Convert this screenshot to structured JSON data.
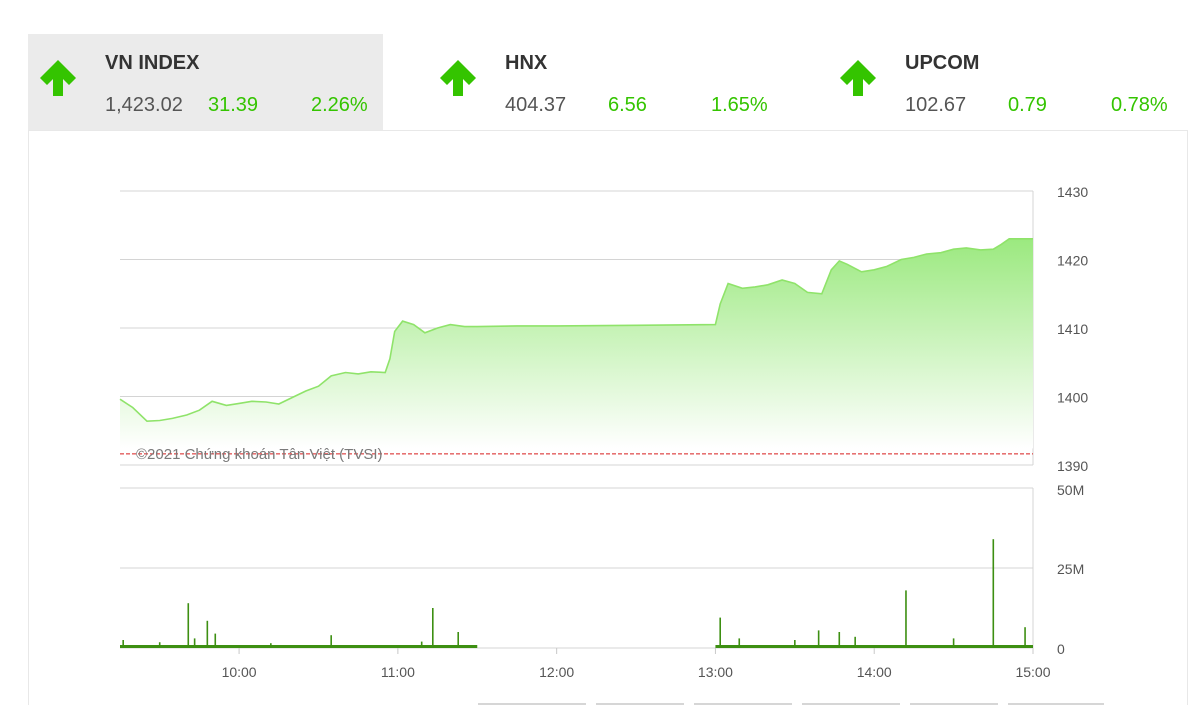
{
  "indices": [
    {
      "name": "VN INDEX",
      "price": "1,423.02",
      "change": "31.39",
      "percent": "2.26%",
      "direction": "up",
      "active": true
    },
    {
      "name": "HNX",
      "price": "404.37",
      "change": "6.56",
      "percent": "1.65%",
      "direction": "up",
      "active": false
    },
    {
      "name": "UPCOM",
      "price": "102.67",
      "change": "0.79",
      "percent": "0.78%",
      "direction": "up",
      "active": false
    }
  ],
  "colors": {
    "up": "#34c400",
    "area_top": "#9be97f",
    "area_bottom": "#ffffff",
    "line": "#8fe36a",
    "reference": "#d81e1e",
    "volume": "#3d8f12"
  },
  "chart_data": [
    {
      "type": "area",
      "series": [
        {
          "values": [
            [
              9.25,
              1399.6
            ],
            [
              9.33,
              1398.4
            ],
            [
              9.42,
              1396.4
            ],
            [
              9.5,
              1396.5
            ],
            [
              9.58,
              1396.8
            ],
            [
              9.67,
              1397.3
            ],
            [
              9.75,
              1398.0
            ],
            [
              9.83,
              1399.3
            ],
            [
              9.92,
              1398.7
            ],
            [
              10.0,
              1399.0
            ],
            [
              10.08,
              1399.3
            ],
            [
              10.17,
              1399.2
            ],
            [
              10.25,
              1398.9
            ],
            [
              10.33,
              1399.8
            ],
            [
              10.42,
              1400.8
            ],
            [
              10.5,
              1401.5
            ],
            [
              10.58,
              1403.0
            ],
            [
              10.67,
              1403.5
            ],
            [
              10.75,
              1403.3
            ],
            [
              10.83,
              1403.6
            ],
            [
              10.92,
              1403.5
            ],
            [
              10.95,
              1405.5
            ],
            [
              10.98,
              1409.5
            ],
            [
              11.03,
              1411.0
            ],
            [
              11.1,
              1410.5
            ],
            [
              11.17,
              1409.3
            ],
            [
              11.25,
              1410.0
            ],
            [
              11.33,
              1410.5
            ],
            [
              11.42,
              1410.2
            ],
            [
              11.5,
              1410.2
            ],
            [
              11.75,
              1410.3
            ],
            [
              12.0,
              1410.3
            ],
            [
              12.5,
              1410.4
            ],
            [
              13.0,
              1410.5
            ],
            [
              13.03,
              1413.5
            ],
            [
              13.08,
              1416.5
            ],
            [
              13.17,
              1415.8
            ],
            [
              13.25,
              1416.0
            ],
            [
              13.33,
              1416.3
            ],
            [
              13.42,
              1417.0
            ],
            [
              13.5,
              1416.5
            ],
            [
              13.58,
              1415.2
            ],
            [
              13.67,
              1415.0
            ],
            [
              13.73,
              1418.5
            ],
            [
              13.78,
              1419.8
            ],
            [
              13.83,
              1419.3
            ],
            [
              13.92,
              1418.2
            ],
            [
              14.0,
              1418.5
            ],
            [
              14.08,
              1419.0
            ],
            [
              14.17,
              1420.0
            ],
            [
              14.25,
              1420.3
            ],
            [
              14.33,
              1420.8
            ],
            [
              14.42,
              1421.0
            ],
            [
              14.5,
              1421.5
            ],
            [
              14.58,
              1421.7
            ],
            [
              14.67,
              1421.4
            ],
            [
              14.75,
              1421.5
            ],
            [
              14.8,
              1422.2
            ],
            [
              14.85,
              1423.02
            ],
            [
              15.0,
              1423.02
            ]
          ]
        }
      ],
      "reference": 1391.63,
      "ylim": [
        1390,
        1430
      ],
      "xlim": [
        9.25,
        15.0
      ],
      "y_ticks": [
        "1390",
        "1400",
        "1410",
        "1420",
        "1430"
      ],
      "watermark": "©2021 Chứng khoán Tân Việt (TVSI)"
    },
    {
      "type": "bar",
      "series": [
        {
          "values": [
            [
              9.27,
              2.5
            ],
            [
              9.5,
              1.8
            ],
            [
              9.68,
              14.0
            ],
            [
              9.72,
              3.0
            ],
            [
              9.8,
              8.5
            ],
            [
              9.85,
              4.5
            ],
            [
              10.2,
              1.5
            ],
            [
              10.58,
              4.0
            ],
            [
              11.15,
              2.0
            ],
            [
              11.22,
              12.5
            ],
            [
              11.38,
              5.0
            ],
            [
              13.03,
              9.5
            ],
            [
              13.15,
              3.0
            ],
            [
              13.5,
              2.5
            ],
            [
              13.65,
              5.5
            ],
            [
              13.78,
              5.0
            ],
            [
              13.88,
              3.5
            ],
            [
              14.2,
              18.0
            ],
            [
              14.5,
              3.0
            ],
            [
              14.75,
              34.0
            ],
            [
              14.95,
              6.5
            ]
          ]
        }
      ],
      "ylim": [
        0,
        50
      ],
      "y_ticks": [
        "0",
        "25M",
        "50M"
      ],
      "x_ticks": [
        "10:00",
        "11:00",
        "12:00",
        "13:00",
        "14:00",
        "15:00"
      ],
      "x_tick_values": [
        10,
        11,
        12,
        13,
        14,
        15
      ]
    }
  ]
}
